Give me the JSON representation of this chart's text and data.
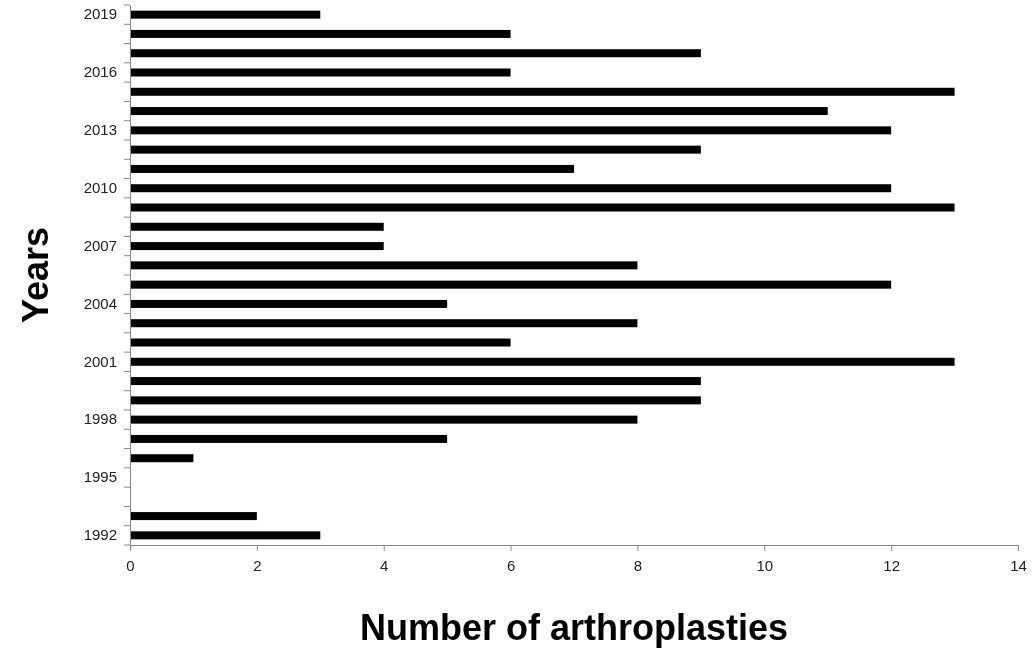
{
  "chart_data": {
    "type": "bar",
    "orientation": "horizontal",
    "xlabel": "Number of arthroplasties",
    "ylabel": "Years",
    "categories": [
      "2019",
      null,
      null,
      "2016",
      null,
      null,
      "2013",
      null,
      null,
      "2010",
      null,
      null,
      "2007",
      null,
      null,
      "2004",
      null,
      null,
      "2001",
      null,
      null,
      "1998",
      null,
      null,
      "1995",
      null,
      null,
      "1992"
    ],
    "values": [
      3,
      6,
      9,
      6,
      13,
      11,
      12,
      9,
      7,
      12,
      13,
      4,
      4,
      8,
      12,
      5,
      8,
      6,
      13,
      9,
      9,
      8,
      5,
      1,
      0,
      0,
      2,
      3
    ],
    "color": "#000000",
    "xlim": [
      0,
      14
    ],
    "xticks": [
      0,
      2,
      4,
      6,
      8,
      10,
      12,
      14
    ],
    "grid": false
  }
}
